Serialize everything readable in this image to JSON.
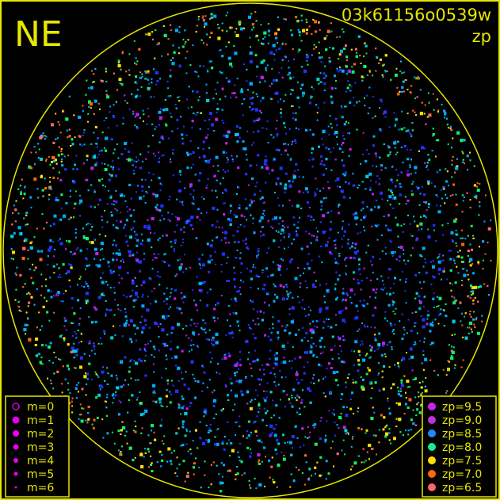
{
  "chart_data": {
    "type": "scatter",
    "title": "03k61156o0539w",
    "subtitle": "zp",
    "corner_label": "NE",
    "projection": "all-sky circle",
    "frame_color": "#e6e600",
    "size_legend": {
      "entries": [
        {
          "label": "m=0",
          "style": "open circle"
        },
        {
          "label": "m=1"
        },
        {
          "label": "m=2"
        },
        {
          "label": "m=3"
        },
        {
          "label": "m=4"
        },
        {
          "label": "m=5"
        },
        {
          "label": "m=6"
        }
      ],
      "color": "#ee00ee",
      "placement": "bottom-left"
    },
    "color_legend": {
      "entries": [
        {
          "label": "zp=9.5",
          "color": "#cc22ee"
        },
        {
          "label": "zp=9.0",
          "color": "#bb33dd"
        },
        {
          "label": "zp=8.5",
          "color": "#2288ff"
        },
        {
          "label": "zp=8.0",
          "color": "#11ee99"
        },
        {
          "label": "zp=7.5",
          "color": "#ffdd00"
        },
        {
          "label": "zp=7.0",
          "color": "#ff6611"
        },
        {
          "label": "zp=6.5",
          "color": "#ff6666"
        }
      ],
      "placement": "bottom-right"
    },
    "point_colors": {
      "blue": "#2233ff",
      "cyan": "#00aaff",
      "teal": "#00ccdd",
      "magenta": "#bb22ee",
      "green": "#11ee66"
    }
  }
}
